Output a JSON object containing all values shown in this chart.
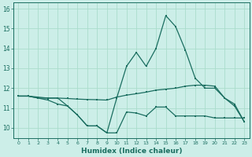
{
  "xlabel": "Humidex (Indice chaleur)",
  "bg_color": "#cceee8",
  "grid_color": "#aaddcc",
  "line_color": "#1a6e60",
  "x": [
    0,
    1,
    2,
    3,
    4,
    5,
    6,
    7,
    8,
    9,
    10,
    11,
    12,
    13,
    14,
    15,
    16,
    17,
    18,
    19,
    20,
    21,
    22,
    23
  ],
  "line1": [
    11.6,
    11.6,
    11.5,
    11.5,
    11.5,
    11.1,
    10.65,
    10.1,
    10.1,
    9.75,
    9.75,
    10.8,
    10.75,
    10.6,
    11.05,
    11.05,
    10.6,
    10.6,
    10.6,
    10.6,
    10.5,
    10.5,
    10.5,
    10.5
  ],
  "line2": [
    11.6,
    11.6,
    11.5,
    11.4,
    11.2,
    11.1,
    10.65,
    10.1,
    10.1,
    9.75,
    11.5,
    13.1,
    13.8,
    13.1,
    14.0,
    15.65,
    15.1,
    13.9,
    12.5,
    12.0,
    12.0,
    11.5,
    11.2,
    10.3
  ],
  "line3": [
    11.6,
    11.6,
    11.55,
    11.5,
    11.5,
    11.48,
    11.45,
    11.43,
    11.42,
    11.4,
    11.55,
    11.65,
    11.72,
    11.8,
    11.9,
    11.95,
    12.0,
    12.1,
    12.15,
    12.15,
    12.1,
    11.5,
    11.1,
    10.3
  ],
  "ylim": [
    9.5,
    16.3
  ],
  "yticks": [
    10,
    11,
    12,
    13,
    14,
    15,
    16
  ],
  "xticks": [
    0,
    1,
    2,
    3,
    4,
    5,
    6,
    7,
    8,
    9,
    10,
    11,
    12,
    13,
    14,
    15,
    16,
    17,
    18,
    19,
    20,
    21,
    22,
    23
  ]
}
